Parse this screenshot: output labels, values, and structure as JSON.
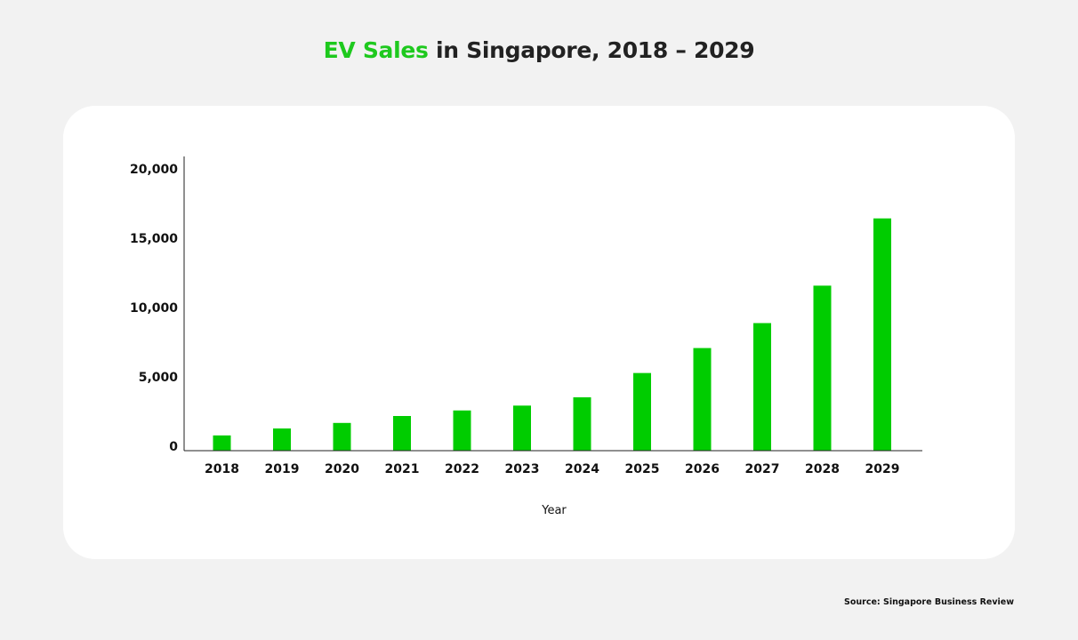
{
  "title": {
    "accent": "EV Sales",
    "rest": " in Singapore, 2018 – 2029"
  },
  "source": "Source: Singapore Business Review",
  "colors": {
    "bar": "#00cc00",
    "accent": "#1ec91e",
    "background": "#f2f2f2",
    "card": "#ffffff",
    "text": "#111111"
  },
  "chart_data": {
    "type": "bar",
    "title": "EV Sales in Singapore, 2018 – 2029",
    "xlabel": "Year",
    "ylabel": "",
    "categories": [
      "2018",
      "2019",
      "2020",
      "2021",
      "2022",
      "2023",
      "2024",
      "2025",
      "2026",
      "2027",
      "2028",
      "2029"
    ],
    "values": [
      1100,
      1600,
      2000,
      2500,
      2900,
      3250,
      3850,
      5600,
      7400,
      9200,
      11900,
      16750
    ],
    "ylim": [
      0,
      20000
    ],
    "yticks": [
      0,
      5000,
      10000,
      15000,
      20000
    ],
    "ytick_labels": [
      "0",
      "5,000",
      "10,000",
      "15,000",
      "20,000"
    ],
    "grid": false,
    "legend": null
  }
}
